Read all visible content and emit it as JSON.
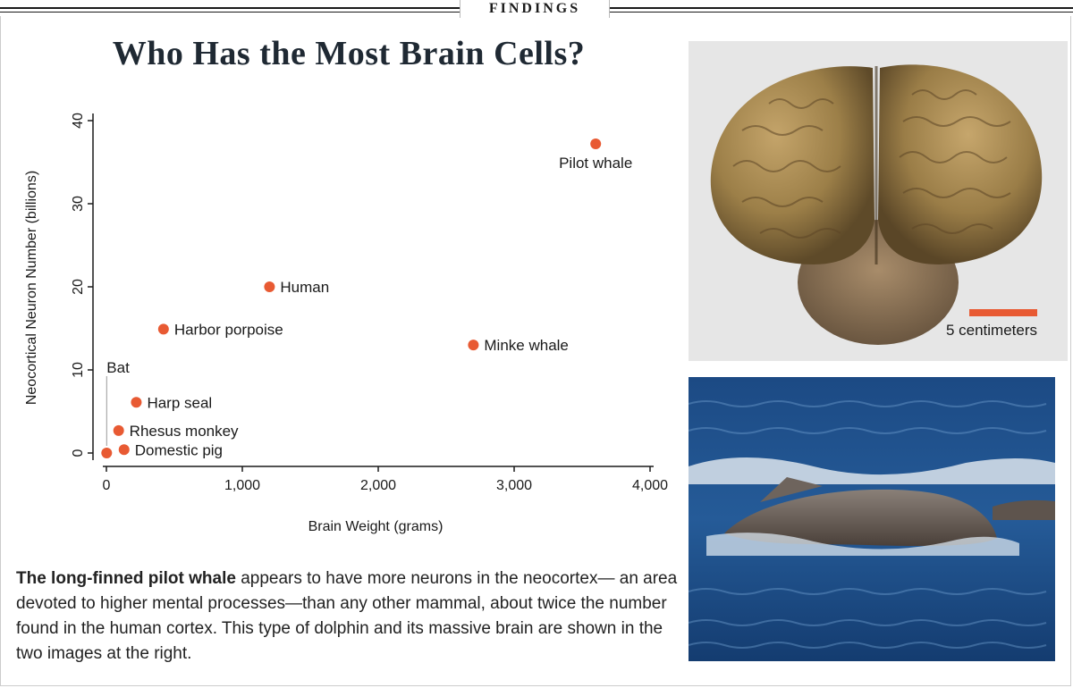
{
  "section_label": "FINDINGS",
  "title": "Who Has the Most Brain Cells?",
  "chart_data": {
    "type": "scatter",
    "xlabel": "Brain Weight (grams)",
    "ylabel": "Neocortical Neuron Number (billions)",
    "xlim": [
      0,
      4000
    ],
    "ylim": [
      0,
      40
    ],
    "xticks": [
      0,
      1000,
      2000,
      3000,
      4000
    ],
    "xtick_labels": [
      "0",
      "1,000",
      "2,000",
      "3,000",
      "4,000"
    ],
    "yticks": [
      0,
      10,
      20,
      30,
      40
    ],
    "ytick_labels": [
      "0",
      "10",
      "20",
      "30",
      "40"
    ],
    "grid": false,
    "point_color": "#e85a33",
    "points": [
      {
        "label": "Pilot whale",
        "x": 3600,
        "y": 37.2
      },
      {
        "label": "Human",
        "x": 1200,
        "y": 20
      },
      {
        "label": "Harbor porpoise",
        "x": 420,
        "y": 14.9
      },
      {
        "label": "Minke whale",
        "x": 2700,
        "y": 13
      },
      {
        "label": "Harp seal",
        "x": 220,
        "y": 6.1
      },
      {
        "label": "Rhesus monkey",
        "x": 90,
        "y": 2.7
      },
      {
        "label": "Domestic pig",
        "x": 130,
        "y": 0.4
      },
      {
        "label": "Bat",
        "x": 2,
        "y": 0
      }
    ]
  },
  "caption": {
    "lead": "The long-finned pilot whale",
    "body": " appears to have more neurons in the neocortex— an area devoted to higher mental processes—than any other mammal, about twice the number found in the human cortex. This type of dolphin and its massive brain are shown in the two images at the right."
  },
  "brain_photo": {
    "scale_label": "5 centimeters",
    "scale_color": "#e85a33"
  }
}
